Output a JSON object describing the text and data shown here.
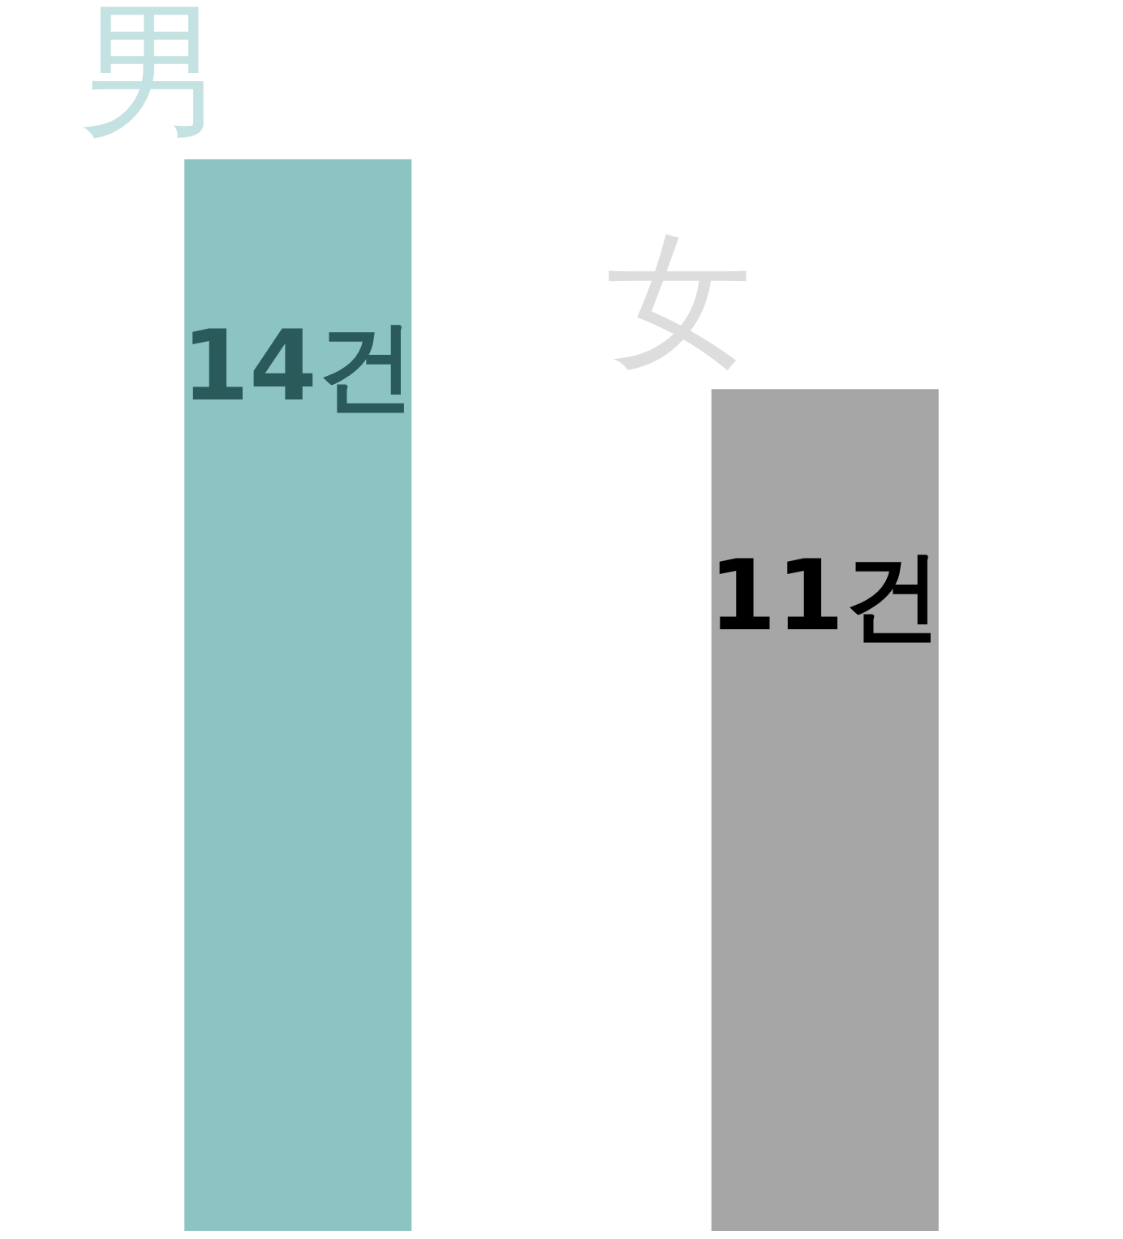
{
  "chart_data": {
    "type": "bar",
    "categories": [
      "男",
      "女"
    ],
    "values": [
      14,
      11
    ],
    "colors": [
      "#8cc4c4",
      "#a6a6a6"
    ],
    "value_labels": [
      "14건",
      "11건"
    ]
  }
}
